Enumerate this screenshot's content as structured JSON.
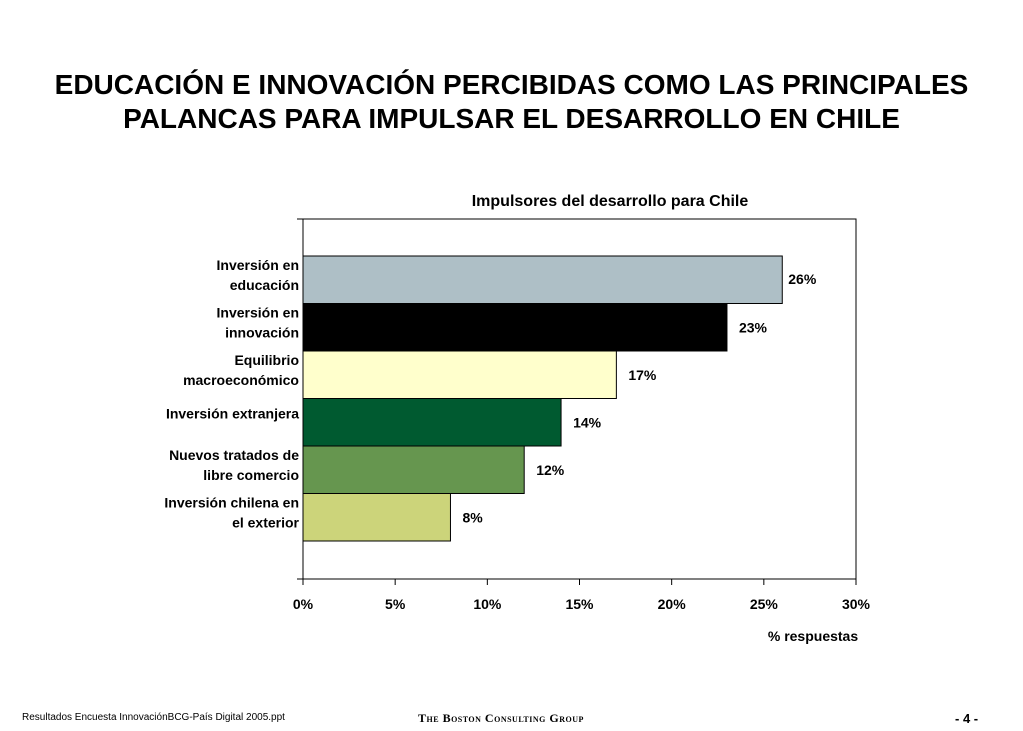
{
  "slide": {
    "title_lines": [
      "EDUCACIÓN E INNOVACIÓN PERCIBIDAS COMO LAS PRINCIPALES",
      "PALANCAS PARA IMPULSAR EL DESARROLLO EN CHILE"
    ]
  },
  "chart_data": {
    "type": "bar",
    "orientation": "horizontal",
    "title": "Impulsores del desarrollo para Chile",
    "xlabel": "% respuestas",
    "ylabel": "",
    "xlim": [
      0,
      30
    ],
    "ticks": [
      0,
      5,
      10,
      15,
      20,
      25,
      30
    ],
    "tick_labels": [
      "0%",
      "5%",
      "10%",
      "15%",
      "20%",
      "25%",
      "30%"
    ],
    "categories": [
      [
        "Inversión en",
        "educación"
      ],
      [
        "Inversión en",
        "innovación"
      ],
      [
        "Equilibrio",
        "macroeconómico"
      ],
      [
        "Inversión extranjera"
      ],
      [
        "Nuevos tratados de",
        "libre comercio"
      ],
      [
        "Inversión chilena en",
        "el exterior"
      ]
    ],
    "values": [
      26,
      23,
      17,
      14,
      12,
      8
    ],
    "value_labels": [
      "26%",
      "23%",
      "17%",
      "14%",
      "12%",
      "8%"
    ],
    "colors": [
      "#aebfc6",
      "#000000",
      "#ffffcc",
      "#005a30",
      "#66964f",
      "#ccd47a"
    ],
    "grid": false,
    "legend": "none"
  },
  "footer": {
    "source": "Resultados Encuesta InnovaciónBCG-País Digital 2005.ppt",
    "company": "The Boston Consulting Group",
    "page": "- 4 -"
  }
}
